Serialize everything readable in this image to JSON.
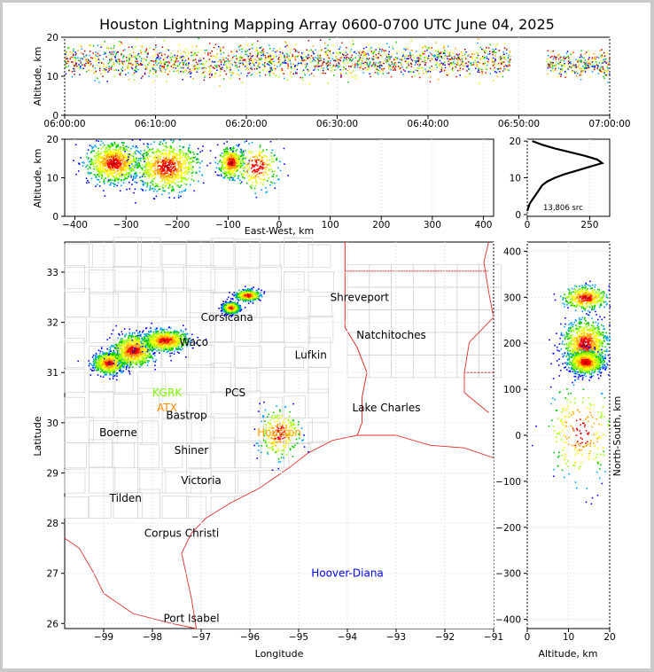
{
  "title": "Houston Lightning Mapping Array 0600-0700 UTC June 04, 2025",
  "chart_data": [
    {
      "id": "time-height",
      "type": "scatter",
      "xlabel": "",
      "ylabel": "Altitude, km",
      "xlim": [
        "06:00:00",
        "07:00:00"
      ],
      "ylim": [
        0,
        20
      ],
      "xticks": [
        "06:00:00",
        "06:10:00",
        "06:20:00",
        "06:30:00",
        "06:40:00",
        "06:50:00",
        "07:00:00"
      ],
      "yticks": [
        "0",
        "10",
        "20"
      ],
      "clusters": [
        {
          "t0": 0,
          "t1": 49,
          "z": 14,
          "spread": 2.5
        },
        {
          "t0": 53,
          "t1": 60,
          "z": 13,
          "spread": 2.0
        }
      ]
    },
    {
      "id": "east-west-height",
      "type": "scatter",
      "xlabel": "East-West, km",
      "ylabel": "Altitude, km",
      "xlim": [
        -420,
        420
      ],
      "ylim": [
        0,
        20
      ],
      "xticks": [
        "−400",
        "−300",
        "−200",
        "−100",
        "0",
        "100",
        "200",
        "300",
        "400"
      ],
      "yticks": [
        "0",
        "10",
        "20"
      ],
      "clusters": [
        {
          "x": -325,
          "z": 14,
          "sx": 25,
          "sz": 2.5,
          "density": "high"
        },
        {
          "x": -220,
          "z": 13,
          "sx": 30,
          "sz": 3,
          "density": "high"
        },
        {
          "x": -95,
          "z": 14,
          "sx": 12,
          "sz": 2,
          "density": "med"
        },
        {
          "x": -45,
          "z": 13,
          "sx": 20,
          "sz": 3,
          "density": "low"
        }
      ]
    },
    {
      "id": "altitude-histogram",
      "type": "line",
      "ylim": [
        0,
        20
      ],
      "xlim": [
        0,
        330
      ],
      "xticks": [
        "0",
        "250"
      ],
      "yticks": [
        "0",
        "10",
        "20"
      ],
      "annotation": "13,806 src",
      "profile": [
        [
          0,
          1
        ],
        [
          5,
          2
        ],
        [
          10,
          3
        ],
        [
          20,
          4
        ],
        [
          30,
          5
        ],
        [
          40,
          6
        ],
        [
          50,
          7
        ],
        [
          60,
          8
        ],
        [
          80,
          9
        ],
        [
          110,
          10
        ],
        [
          150,
          11
        ],
        [
          200,
          12
        ],
        [
          250,
          13
        ],
        [
          300,
          14
        ],
        [
          280,
          15
        ],
        [
          230,
          16
        ],
        [
          170,
          17
        ],
        [
          110,
          18
        ],
        [
          60,
          19
        ],
        [
          20,
          20
        ]
      ]
    },
    {
      "id": "plan-view",
      "type": "scatter",
      "xlabel": "Longitude",
      "ylabel": "Latitude",
      "xlim": [
        -99.8,
        -91
      ],
      "ylim": [
        25.9,
        33.6
      ],
      "xticks": [
        "−99",
        "−98",
        "−97",
        "−96",
        "−95",
        "−94",
        "−93",
        "−92",
        "−91"
      ],
      "yticks": [
        "26",
        "27",
        "28",
        "29",
        "30",
        "31",
        "32",
        "33"
      ],
      "clusters": [
        {
          "lon": -98.9,
          "lat": 31.2,
          "slon": 0.15,
          "slat": 0.1,
          "density": "high"
        },
        {
          "lon": -98.4,
          "lat": 31.45,
          "slon": 0.2,
          "slat": 0.15,
          "density": "high"
        },
        {
          "lon": -97.75,
          "lat": 31.65,
          "slon": 0.22,
          "slat": 0.1,
          "density": "high"
        },
        {
          "lon": -96.4,
          "lat": 32.3,
          "slon": 0.08,
          "slat": 0.05,
          "density": "high"
        },
        {
          "lon": -96.05,
          "lat": 32.55,
          "slon": 0.12,
          "slat": 0.05,
          "density": "med"
        },
        {
          "lon": -95.4,
          "lat": 29.8,
          "slon": 0.2,
          "slat": 0.25,
          "density": "low"
        }
      ],
      "cities": [
        {
          "name": "Shreveport",
          "lon": -93.75,
          "lat": 32.5,
          "color": "#000000"
        },
        {
          "name": "Corsicana",
          "lon": -96.47,
          "lat": 32.1,
          "color": "#000000"
        },
        {
          "name": "Waco",
          "lon": -97.15,
          "lat": 31.6,
          "color": "#000000"
        },
        {
          "name": "Natchitoches",
          "lon": -93.1,
          "lat": 31.75,
          "color": "#000000"
        },
        {
          "name": "Lufkin",
          "lon": -94.75,
          "lat": 31.35,
          "color": "#000000"
        },
        {
          "name": "KGRK",
          "lon": -97.7,
          "lat": 30.6,
          "color": "#7cfc00"
        },
        {
          "name": "ATX",
          "lon": -97.7,
          "lat": 30.3,
          "color": "#ff8c00"
        },
        {
          "name": "Bastrop",
          "lon": -97.3,
          "lat": 30.15,
          "color": "#000000"
        },
        {
          "name": "PCS",
          "lon": -96.3,
          "lat": 30.6,
          "color": "#000000"
        },
        {
          "name": "Lake Charles",
          "lon": -93.2,
          "lat": 30.3,
          "color": "#000000"
        },
        {
          "name": "Boerne",
          "lon": -98.7,
          "lat": 29.8,
          "color": "#000000"
        },
        {
          "name": "Houston",
          "lon": -95.4,
          "lat": 29.8,
          "color": "#ffa500"
        },
        {
          "name": "Shiner",
          "lon": -97.2,
          "lat": 29.45,
          "color": "#000000"
        },
        {
          "name": "Victoria",
          "lon": -97.0,
          "lat": 28.85,
          "color": "#000000"
        },
        {
          "name": "Tilden",
          "lon": -98.55,
          "lat": 28.5,
          "color": "#000000"
        },
        {
          "name": "Corpus Christi",
          "lon": -97.4,
          "lat": 27.8,
          "color": "#000000"
        },
        {
          "name": "Hoover-Diana",
          "lon": -94.0,
          "lat": 27.0,
          "color": "#0000ff"
        },
        {
          "name": "Port Isabel",
          "lon": -97.2,
          "lat": 26.1,
          "color": "#000000"
        }
      ]
    },
    {
      "id": "north-south-height",
      "type": "scatter",
      "xlabel": "Altitude, km",
      "ylabel": "North-South, km",
      "xlim": [
        0,
        20
      ],
      "ylim": [
        -420,
        420
      ],
      "xticks": [
        "0",
        "10",
        "20"
      ],
      "yticks": [
        "−400",
        "−300",
        "−200",
        "−100",
        "0",
        "100",
        "200",
        "300",
        "400"
      ],
      "clusters": [
        {
          "ns": 300,
          "z": 14,
          "sns": 12,
          "sz": 2.5,
          "density": "med"
        },
        {
          "ns": 200,
          "z": 14,
          "sns": 25,
          "sz": 2.5,
          "density": "high"
        },
        {
          "ns": 160,
          "z": 14,
          "sns": 12,
          "sz": 2.0,
          "density": "high"
        },
        {
          "ns": 10,
          "z": 13,
          "sns": 50,
          "sz": 4.0,
          "density": "low"
        }
      ]
    }
  ]
}
